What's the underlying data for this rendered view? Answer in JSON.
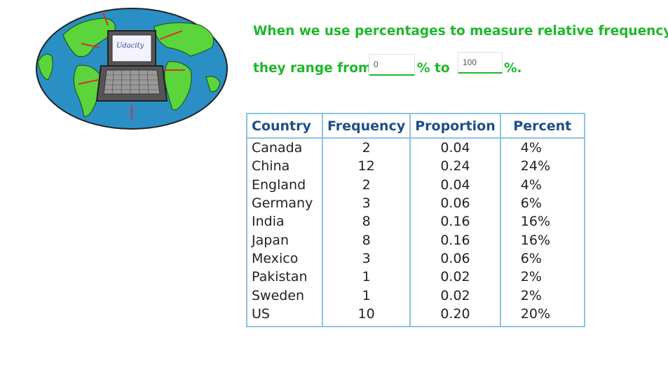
{
  "question": {
    "line1": "When we use percentages to measure relative frequency,",
    "line2_start": "they range from",
    "blank1_value": "0",
    "between": "% to",
    "blank2_value": "100",
    "end": "%."
  },
  "logo": {
    "text": "Udacity"
  },
  "table": {
    "headers": [
      "Country",
      "Frequency",
      "Proportion",
      "Percent"
    ],
    "rows": [
      [
        "Canada",
        "2",
        "0.04",
        "4%"
      ],
      [
        "China",
        "12",
        "0.24",
        "24%"
      ],
      [
        "England",
        "2",
        "0.04",
        "4%"
      ],
      [
        "Germany",
        "3",
        "0.06",
        "6%"
      ],
      [
        "India",
        "8",
        "0.16",
        "16%"
      ],
      [
        "Japan",
        "8",
        "0.16",
        "16%"
      ],
      [
        "Mexico",
        "3",
        "0.06",
        "6%"
      ],
      [
        "Pakistan",
        "1",
        "0.02",
        "2%"
      ],
      [
        "Sweden",
        "1",
        "0.02",
        "2%"
      ],
      [
        "US",
        "10",
        "0.20",
        "20%"
      ]
    ]
  },
  "colors": {
    "question_green": "#1db82a",
    "header_blue": "#1e4f86",
    "grid_blue": "#8fc2e0",
    "ocean": "#2a8fc4",
    "land": "#5cd43c"
  }
}
